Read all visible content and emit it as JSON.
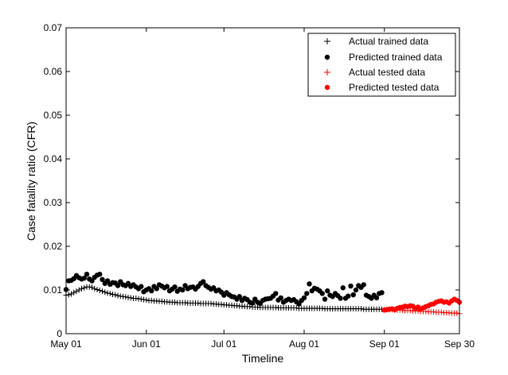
{
  "chart_data": {
    "type": "scatter",
    "title": "",
    "xlabel": "Timeline",
    "ylabel": "Case fatality ratio (CFR)",
    "x_tick_labels": [
      "May 01",
      "Jun 01",
      "Jul 01",
      "Aug 01",
      "Sep 01",
      "Sep 30"
    ],
    "x_tick_days": [
      0,
      31,
      61,
      92,
      123,
      152
    ],
    "x_start_date": "May 01",
    "xlim_days": [
      0,
      152
    ],
    "ylim": [
      0,
      0.07
    ],
    "y_ticks": [
      0,
      0.01,
      0.02,
      0.03,
      0.04,
      0.05,
      0.06,
      0.07
    ],
    "y_tick_labels": [
      "0",
      "0.01",
      "0.02",
      "0.03",
      "0.04",
      "0.05",
      "0.06",
      "0.07"
    ],
    "grid": false,
    "legend_position": "top-right",
    "colors": {
      "trained": "#000000",
      "tested": "#ff0000"
    },
    "series": [
      {
        "name": "Actual trained data",
        "marker": "plus",
        "color": "#000000",
        "x_days": [
          0,
          1,
          2,
          3,
          4,
          5,
          6,
          7,
          8,
          9,
          10,
          11,
          12,
          13,
          14,
          15,
          16,
          17,
          18,
          19,
          20,
          21,
          22,
          23,
          24,
          25,
          26,
          27,
          28,
          29,
          30,
          31,
          32,
          33,
          34,
          35,
          36,
          37,
          38,
          39,
          40,
          41,
          42,
          43,
          44,
          45,
          46,
          47,
          48,
          49,
          50,
          51,
          52,
          53,
          54,
          55,
          56,
          57,
          58,
          59,
          60,
          61,
          62,
          63,
          64,
          65,
          66,
          67,
          68,
          69,
          70,
          71,
          72,
          73,
          74,
          75,
          76,
          77,
          78,
          79,
          80,
          81,
          82,
          83,
          84,
          85,
          86,
          87,
          88,
          89,
          90,
          91,
          92,
          93,
          94,
          95,
          96,
          97,
          98,
          99,
          100,
          101,
          102,
          103,
          104,
          105,
          106,
          107,
          108,
          109,
          110,
          111,
          112,
          113,
          114,
          115,
          116,
          117,
          118,
          119,
          120,
          121,
          122
        ],
        "y": [
          0.0088,
          0.0089,
          0.0091,
          0.0094,
          0.0097,
          0.01,
          0.0103,
          0.0105,
          0.0107,
          0.0107,
          0.0106,
          0.0103,
          0.0101,
          0.0099,
          0.0097,
          0.0095,
          0.0093,
          0.0092,
          0.009,
          0.0089,
          0.0087,
          0.0086,
          0.0085,
          0.0084,
          0.0083,
          0.0082,
          0.0081,
          0.0081,
          0.008,
          0.0079,
          0.0078,
          0.0077,
          0.0076,
          0.0076,
          0.0075,
          0.0075,
          0.0074,
          0.0074,
          0.0073,
          0.0073,
          0.0072,
          0.0072,
          0.0072,
          0.0071,
          0.0071,
          0.0071,
          0.0071,
          0.007,
          0.007,
          0.007,
          0.007,
          0.007,
          0.0069,
          0.0069,
          0.0069,
          0.0069,
          0.0069,
          0.0068,
          0.0068,
          0.0067,
          0.0067,
          0.0066,
          0.0066,
          0.0065,
          0.0065,
          0.0064,
          0.0064,
          0.0063,
          0.0063,
          0.0062,
          0.0062,
          0.0062,
          0.0061,
          0.0061,
          0.0061,
          0.006,
          0.006,
          0.006,
          0.006,
          0.006,
          0.006,
          0.006,
          0.0059,
          0.0059,
          0.0059,
          0.0059,
          0.0059,
          0.0059,
          0.0059,
          0.0059,
          0.0058,
          0.0058,
          0.0058,
          0.0058,
          0.0058,
          0.0058,
          0.0058,
          0.0058,
          0.0058,
          0.0058,
          0.0057,
          0.0057,
          0.0057,
          0.0057,
          0.0057,
          0.0057,
          0.0057,
          0.0057,
          0.0057,
          0.0057,
          0.0057,
          0.0057,
          0.0057,
          0.0057,
          0.0057,
          0.0056,
          0.0056,
          0.0056,
          0.0056,
          0.0056,
          0.0056,
          0.0056,
          0.0056
        ]
      },
      {
        "name": "Predicted trained data",
        "marker": "dot",
        "color": "#000000",
        "x_days": [
          0,
          1,
          2,
          3,
          4,
          5,
          6,
          7,
          8,
          9,
          10,
          11,
          12,
          13,
          14,
          15,
          16,
          17,
          18,
          19,
          20,
          21,
          22,
          23,
          24,
          25,
          26,
          27,
          28,
          29,
          30,
          31,
          32,
          33,
          34,
          35,
          36,
          37,
          38,
          39,
          40,
          41,
          42,
          43,
          44,
          45,
          46,
          47,
          48,
          49,
          50,
          51,
          52,
          53,
          54,
          55,
          56,
          57,
          58,
          59,
          60,
          61,
          62,
          63,
          64,
          65,
          66,
          67,
          68,
          69,
          70,
          71,
          72,
          73,
          74,
          75,
          76,
          77,
          78,
          79,
          80,
          81,
          82,
          83,
          84,
          85,
          86,
          87,
          88,
          89,
          90,
          91,
          92,
          93,
          94,
          95,
          96,
          97,
          98,
          99,
          100,
          101,
          102,
          103,
          104,
          105,
          106,
          107,
          108,
          109,
          110,
          111,
          112,
          113,
          114,
          115,
          116,
          117,
          118,
          119,
          120,
          121,
          122
        ],
        "y": [
          0.0101,
          0.0121,
          0.0122,
          0.0126,
          0.0133,
          0.0128,
          0.0125,
          0.0127,
          0.0136,
          0.0125,
          0.0121,
          0.0129,
          0.0134,
          0.0136,
          0.0124,
          0.0115,
          0.0121,
          0.0113,
          0.0117,
          0.0116,
          0.011,
          0.0119,
          0.0112,
          0.011,
          0.0115,
          0.0108,
          0.0112,
          0.0107,
          0.0103,
          0.0108,
          0.0096,
          0.01,
          0.0103,
          0.0098,
          0.0108,
          0.0103,
          0.0112,
          0.0109,
          0.0105,
          0.0108,
          0.0098,
          0.0102,
          0.0107,
          0.0097,
          0.0102,
          0.01,
          0.011,
          0.0103,
          0.0106,
          0.0107,
          0.0102,
          0.0108,
          0.0115,
          0.0119,
          0.011,
          0.0106,
          0.0102,
          0.0105,
          0.0098,
          0.01,
          0.0095,
          0.0088,
          0.0094,
          0.0089,
          0.0085,
          0.0084,
          0.0079,
          0.0085,
          0.0076,
          0.0081,
          0.0078,
          0.0072,
          0.007,
          0.0079,
          0.0072,
          0.0069,
          0.0076,
          0.0079,
          0.008,
          0.0081,
          0.0086,
          0.0092,
          0.0077,
          0.0082,
          0.0072,
          0.0076,
          0.0079,
          0.0076,
          0.0078,
          0.0073,
          0.0068,
          0.0076,
          0.0082,
          0.0092,
          0.0114,
          0.0098,
          0.0104,
          0.0102,
          0.0098,
          0.0092,
          0.0079,
          0.0098,
          0.0088,
          0.0085,
          0.0092,
          0.0087,
          0.0081,
          0.0105,
          0.0081,
          0.0086,
          0.0109,
          0.0089,
          0.01,
          0.011,
          0.0106,
          0.0112,
          0.0088,
          0.0085,
          0.0081,
          0.0088,
          0.0082,
          0.0092,
          0.0094
        ]
      },
      {
        "name": "Actual tested data",
        "marker": "plus",
        "color": "#ff0000",
        "x_days": [
          123,
          124,
          125,
          126,
          127,
          128,
          129,
          130,
          131,
          132,
          133,
          134,
          135,
          136,
          137,
          138,
          139,
          140,
          141,
          142,
          143,
          144,
          145,
          146,
          147,
          148,
          149,
          150,
          151,
          152
        ],
        "y": [
          0.0055,
          0.0055,
          0.0055,
          0.0055,
          0.0054,
          0.0054,
          0.0054,
          0.0054,
          0.0053,
          0.0053,
          0.0053,
          0.0052,
          0.0052,
          0.0052,
          0.0051,
          0.0051,
          0.0051,
          0.005,
          0.005,
          0.005,
          0.0049,
          0.0049,
          0.0049,
          0.0048,
          0.0048,
          0.0048,
          0.0047,
          0.0047,
          0.0047,
          0.0046
        ]
      },
      {
        "name": "Predicted tested data",
        "marker": "dot",
        "color": "#ff0000",
        "x_days": [
          123,
          124,
          125,
          126,
          127,
          128,
          129,
          130,
          131,
          132,
          133,
          134,
          135,
          136,
          137,
          138,
          139,
          140,
          141,
          142,
          143,
          144,
          145,
          146,
          147,
          148,
          149,
          150,
          151,
          152
        ],
        "y": [
          0.0054,
          0.0055,
          0.0056,
          0.0057,
          0.0055,
          0.0058,
          0.006,
          0.0061,
          0.0063,
          0.0062,
          0.0064,
          0.0063,
          0.0058,
          0.0061,
          0.0057,
          0.0059,
          0.0062,
          0.0064,
          0.0067,
          0.0068,
          0.0072,
          0.0074,
          0.0075,
          0.0072,
          0.0073,
          0.007,
          0.0075,
          0.0079,
          0.0076,
          0.0072
        ]
      }
    ]
  }
}
